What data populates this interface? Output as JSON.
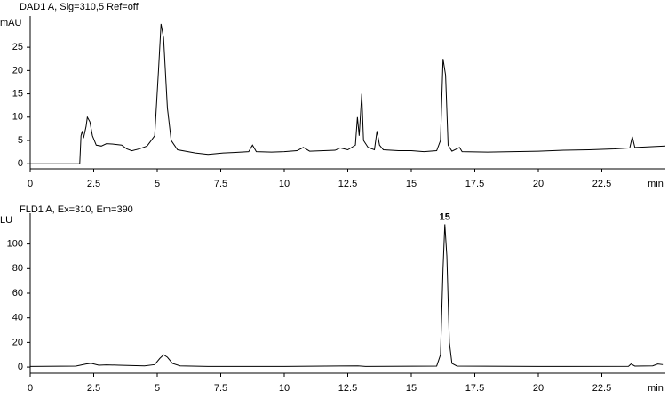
{
  "chart_data": [
    {
      "type": "line",
      "title": "DAD1 A, Sig=310,5 Ref=off",
      "y_label": "mAU",
      "x_label": "min",
      "x": [
        0,
        1.95,
        2.0,
        2.05,
        2.1,
        2.2,
        2.25,
        2.35,
        2.45,
        2.6,
        2.8,
        3.0,
        3.3,
        3.6,
        3.8,
        4.0,
        4.3,
        4.6,
        4.9,
        5.05,
        5.15,
        5.25,
        5.4,
        5.55,
        5.8,
        6.5,
        7.0,
        7.6,
        8.0,
        8.6,
        8.75,
        8.9,
        9.5,
        10,
        10.5,
        10.75,
        11,
        12,
        12.2,
        12.5,
        12.8,
        12.88,
        12.95,
        13.05,
        13.12,
        13.3,
        13.55,
        13.65,
        13.75,
        13.9,
        14.5,
        15,
        15.5,
        16.0,
        16.15,
        16.25,
        16.35,
        16.45,
        16.6,
        16.9,
        17.0,
        18,
        19,
        20,
        21,
        22,
        23,
        23.6,
        23.7,
        23.8,
        24.2,
        25
      ],
      "values": [
        0,
        0,
        6,
        7,
        5.5,
        8,
        10,
        9,
        6,
        4,
        3.8,
        4.3,
        4.2,
        4,
        3.2,
        2.8,
        3.2,
        3.8,
        6,
        20,
        30,
        27,
        12,
        5,
        3,
        2.3,
        2,
        2.3,
        2.4,
        2.6,
        4,
        2.6,
        2.5,
        2.6,
        2.8,
        3.5,
        2.7,
        2.9,
        3.4,
        3,
        4,
        10,
        6,
        15,
        5,
        3.5,
        3,
        7,
        4,
        3,
        2.8,
        2.8,
        2.6,
        2.8,
        5,
        22.5,
        19,
        4,
        2.7,
        3.5,
        2.6,
        2.5,
        2.6,
        2.7,
        2.9,
        3,
        3.2,
        3.4,
        5.8,
        3.5,
        3.6,
        3.8
      ],
      "color": "#000000",
      "xlim": [
        0,
        25
      ],
      "xticks": [
        0,
        2.5,
        5,
        7.5,
        10,
        12.5,
        15,
        17.5,
        20,
        22.5
      ],
      "ylim": [
        -1.1,
        31.7
      ],
      "yticks": [
        0,
        5,
        10,
        15,
        20,
        25
      ]
    },
    {
      "type": "line",
      "title": "FLD1 A, Ex=310, Em=390",
      "y_label": "LU",
      "x_label": "min",
      "x": [
        0,
        1.8,
        2.2,
        2.4,
        2.7,
        3.0,
        3.5,
        4.5,
        4.9,
        5.1,
        5.25,
        5.4,
        5.6,
        5.9,
        7,
        10,
        12.9,
        13.2,
        16.0,
        16.15,
        16.25,
        16.32,
        16.4,
        16.5,
        16.6,
        16.8,
        20,
        23.55,
        23.65,
        23.8,
        24.5,
        24.7,
        24.9
      ],
      "values": [
        0.5,
        0.8,
        2.5,
        3,
        1.5,
        1.8,
        1.5,
        1,
        2,
        7,
        10,
        8,
        3,
        1,
        0.5,
        0.5,
        1,
        0.5,
        0.8,
        10,
        80,
        116,
        90,
        20,
        3,
        0.8,
        0.5,
        0.6,
        2.5,
        0.8,
        1,
        2.5,
        2
      ],
      "color": "#000000",
      "annotations": [
        {
          "text": "15",
          "x": 16.32,
          "y": 116
        }
      ],
      "xlim": [
        0,
        25
      ],
      "xticks": [
        0,
        2.5,
        5,
        7.5,
        10,
        12.5,
        15,
        17.5,
        20,
        22.5
      ],
      "ylim": [
        -5,
        125
      ],
      "yticks": [
        0,
        20,
        40,
        60,
        80,
        100
      ]
    }
  ]
}
